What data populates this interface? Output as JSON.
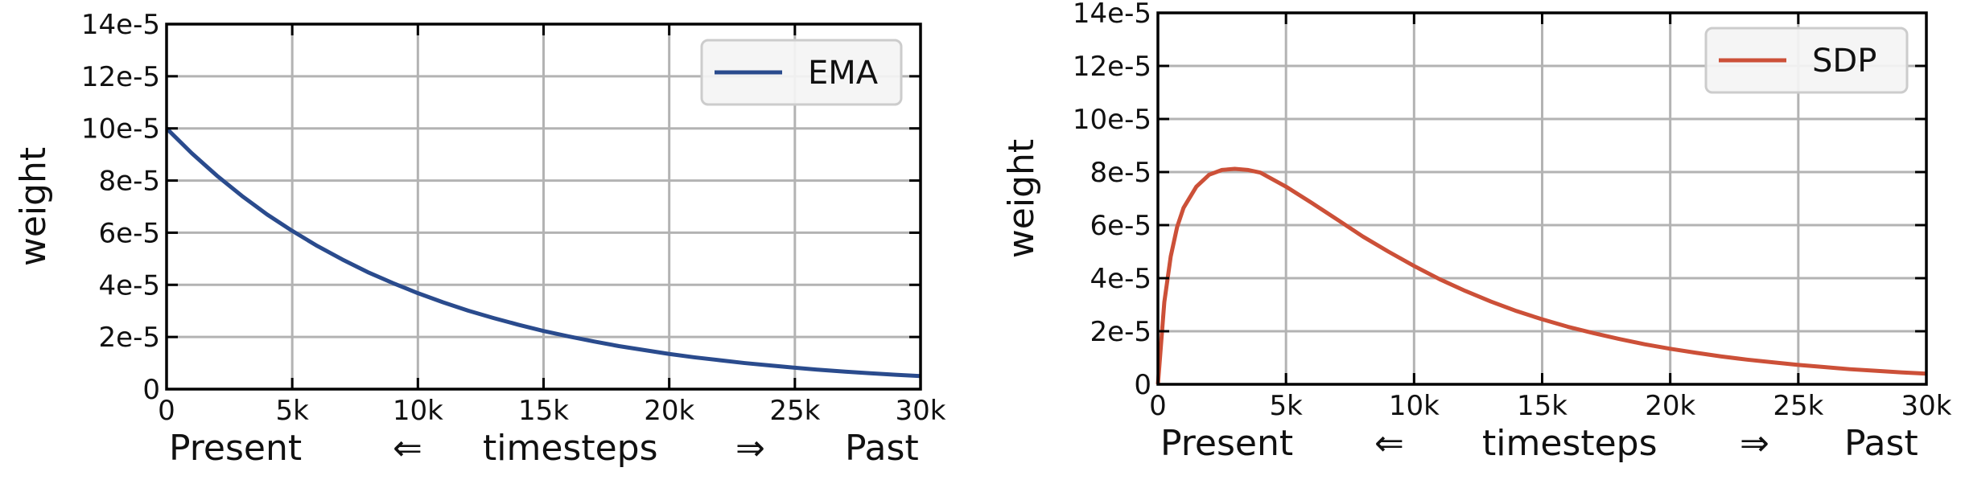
{
  "chart_data": [
    {
      "type": "line",
      "ylabel": "weight",
      "xlabel_parts": [
        "Present",
        "⇐",
        "timesteps",
        "⇒",
        "Past"
      ],
      "xlim": [
        0,
        30000
      ],
      "ylim": [
        0,
        0.00014
      ],
      "x_ticks": [
        0,
        5000,
        10000,
        15000,
        20000,
        25000,
        30000
      ],
      "x_tick_labels": [
        "0",
        "5k",
        "10k",
        "15k",
        "20k",
        "25k",
        "30k"
      ],
      "y_ticks": [
        0,
        2e-05,
        4e-05,
        6e-05,
        8e-05,
        0.0001,
        0.00012,
        0.00014
      ],
      "y_tick_labels": [
        "0",
        "2e-5",
        "4e-5",
        "6e-5",
        "8e-5",
        "10e-5",
        "12e-5",
        "14e-5"
      ],
      "grid": true,
      "legend_position": "top-right",
      "series": [
        {
          "name": "EMA",
          "color": "#2a4b8d",
          "x": [
            0,
            1000,
            2000,
            3000,
            4000,
            5000,
            6000,
            7000,
            8000,
            9000,
            10000,
            11000,
            12000,
            13000,
            14000,
            15000,
            16000,
            17000,
            18000,
            19000,
            20000,
            21000,
            22000,
            23000,
            24000,
            25000,
            26000,
            27000,
            28000,
            29000,
            30000
          ],
          "y": [
            0.0001,
            9.05e-05,
            8.19e-05,
            7.41e-05,
            6.7e-05,
            6.07e-05,
            5.49e-05,
            4.97e-05,
            4.49e-05,
            4.07e-05,
            3.68e-05,
            3.33e-05,
            3.01e-05,
            2.73e-05,
            2.47e-05,
            2.23e-05,
            2.02e-05,
            1.83e-05,
            1.65e-05,
            1.5e-05,
            1.35e-05,
            1.22e-05,
            1.11e-05,
            1e-05,
            9.1e-06,
            8.2e-06,
            7.4e-06,
            6.7e-06,
            6.1e-06,
            5.5e-06,
            5e-06
          ]
        }
      ]
    },
    {
      "type": "line",
      "ylabel": "weight",
      "xlabel_parts": [
        "Present",
        "⇐",
        "timesteps",
        "⇒",
        "Past"
      ],
      "xlim": [
        0,
        30000
      ],
      "ylim": [
        0,
        0.00014
      ],
      "x_ticks": [
        0,
        5000,
        10000,
        15000,
        20000,
        25000,
        30000
      ],
      "x_tick_labels": [
        "0",
        "5k",
        "10k",
        "15k",
        "20k",
        "25k",
        "30k"
      ],
      "y_ticks": [
        0,
        2e-05,
        4e-05,
        6e-05,
        8e-05,
        0.0001,
        0.00012,
        0.00014
      ],
      "y_tick_labels": [
        "0",
        "2e-5",
        "4e-5",
        "6e-5",
        "8e-5",
        "10e-5",
        "12e-5",
        "14e-5"
      ],
      "grid": true,
      "legend_position": "top-right",
      "series": [
        {
          "name": "SDP",
          "color": "#cc5038",
          "x": [
            0,
            250,
            500,
            750,
            1000,
            1500,
            2000,
            2500,
            3000,
            3500,
            4000,
            5000,
            6000,
            7000,
            8000,
            9000,
            10000,
            11000,
            12000,
            13000,
            14000,
            15000,
            16000,
            17000,
            18000,
            19000,
            20000,
            21000,
            22000,
            23000,
            24000,
            25000,
            26000,
            27000,
            28000,
            29000,
            30000
          ],
          "y": [
            0,
            3.1e-05,
            4.82e-05,
            5.93e-05,
            6.65e-05,
            7.45e-05,
            7.9e-05,
            8.08e-05,
            8.12e-05,
            8.08e-05,
            7.98e-05,
            7.45e-05,
            6.84e-05,
            6.21e-05,
            5.57e-05,
            5e-05,
            4.46e-05,
            3.96e-05,
            3.52e-05,
            3.12e-05,
            2.76e-05,
            2.45e-05,
            2.17e-05,
            1.93e-05,
            1.71e-05,
            1.51e-05,
            1.34e-05,
            1.19e-05,
            1.05e-05,
            9.3e-06,
            8.3e-06,
            7.3e-06,
            6.5e-06,
            5.7e-06,
            5.1e-06,
            4.5e-06,
            4e-06
          ]
        }
      ]
    }
  ]
}
